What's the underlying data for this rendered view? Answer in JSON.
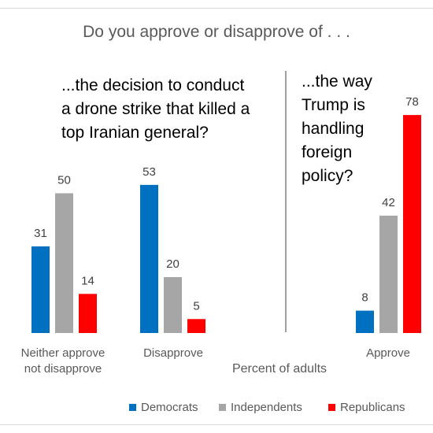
{
  "chart_data": {
    "type": "bar",
    "title": "Do you approve or disapprove of . . .",
    "xlabel": "Percent of adults",
    "ylabel": "",
    "ylim": [
      0,
      100
    ],
    "grid": false,
    "legend_position": "bottom",
    "series": [
      {
        "name": "Democrats",
        "color": "#0070C0"
      },
      {
        "name": "Independents",
        "color": "#A6A6A6"
      },
      {
        "name": "Republicans",
        "color": "#FF0000"
      }
    ],
    "panels": [
      {
        "label_lines": [
          "...the decision to conduct",
          "a drone strike that killed a",
          "top Iranian general?"
        ],
        "categories": [
          {
            "label_lines": [
              "Neither approve",
              "not disapprove"
            ],
            "values": [
              31,
              50,
              14
            ]
          },
          {
            "label_lines": [
              "Disapprove"
            ],
            "values": [
              53,
              20,
              5
            ]
          }
        ]
      },
      {
        "label_lines": [
          "...the way",
          "Trump is",
          "handling",
          "foreign",
          "policy?"
        ],
        "categories": [
          {
            "label_lines": [
              "Approve"
            ],
            "values": [
              8,
              42,
              78
            ]
          }
        ]
      }
    ]
  }
}
